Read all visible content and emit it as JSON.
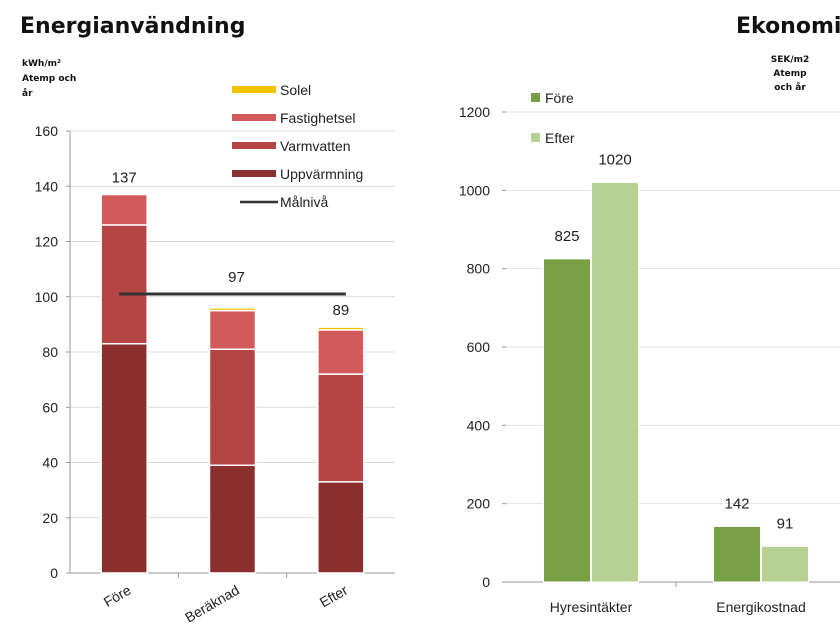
{
  "chart_data": [
    {
      "type": "bar",
      "stacked": true,
      "title": "Energianvändning",
      "ylabel_lines": [
        "kWh/m²",
        "Atemp och",
        "år"
      ],
      "categories": [
        "Före",
        "Beräknad",
        "Efter"
      ],
      "series": [
        {
          "name": "Uppvärmning",
          "values": [
            83,
            39,
            33
          ],
          "color": "#8b2e2e"
        },
        {
          "name": "Varmvatten",
          "values": [
            43,
            42,
            39
          ],
          "color": "#b54444"
        },
        {
          "name": "Fastighetsel",
          "values": [
            11,
            14,
            16
          ],
          "color": "#d35a5a"
        },
        {
          "name": "Solel",
          "values": [
            0,
            1,
            1
          ],
          "color": "#f2c200"
        }
      ],
      "totals": [
        "137",
        "97",
        "89"
      ],
      "target_line": {
        "name": "Målnivå",
        "value": 101,
        "from_category": 0,
        "to_category": 2,
        "color": "#333333"
      },
      "ylim": [
        0,
        160
      ],
      "yticks": [
        "0",
        "20",
        "40",
        "60",
        "80",
        "100",
        "120",
        "140",
        "160"
      ],
      "legend_order": [
        "Solel",
        "Fastighetsel",
        "Varmvatten",
        "Uppvärmning",
        "Målnivå"
      ],
      "legend_position": "top-right"
    },
    {
      "type": "bar",
      "title": "Ekonomi",
      "ylabel_lines": [
        "SEK/m2",
        "Atemp",
        "och år"
      ],
      "categories": [
        "Hyresintäkter",
        "Energikostnad"
      ],
      "series": [
        {
          "name": "Före",
          "values": [
            825,
            142
          ],
          "labels": [
            "825",
            "142"
          ],
          "color": "#76a043"
        },
        {
          "name": "Efter",
          "values": [
            1020,
            91
          ],
          "labels": [
            "1020",
            "91"
          ],
          "color": "#b6d191"
        }
      ],
      "ylim": [
        0,
        1200
      ],
      "yticks": [
        "0",
        "200",
        "400",
        "600",
        "800",
        "1000",
        "1200"
      ],
      "legend_position": "top-left"
    }
  ]
}
